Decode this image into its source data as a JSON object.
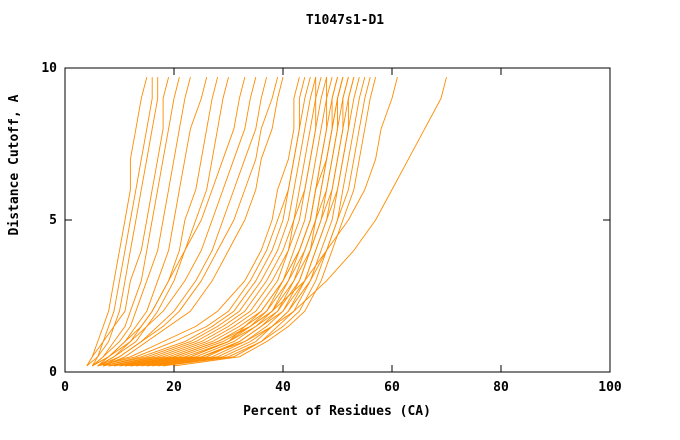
{
  "chart_data": {
    "type": "line",
    "title": "T1047s1-D1",
    "xlabel": "Percent of Residues (CA)",
    "ylabel": "Distance Cutoff, A",
    "xlim": [
      0,
      100
    ],
    "ylim": [
      0,
      10
    ],
    "x_ticks": [
      0,
      20,
      40,
      60,
      80,
      100
    ],
    "y_ticks": [
      0,
      5,
      10
    ],
    "grid": false,
    "legend": "none",
    "line_color": "#ff8c00",
    "axis_color": "#000000",
    "y_levels": [
      0.2,
      0.5,
      1,
      1.5,
      2,
      3,
      4,
      5,
      6,
      7,
      8,
      9,
      9.7
    ],
    "curves": [
      [
        4,
        5,
        6,
        7,
        8,
        9,
        10,
        11,
        12,
        12,
        13,
        14,
        15
      ],
      [
        4,
        5,
        7,
        8,
        9,
        10,
        11,
        12,
        13,
        14,
        15,
        16,
        16
      ],
      [
        5,
        6,
        7,
        9,
        10,
        11,
        12,
        13,
        14,
        15,
        16,
        17,
        17
      ],
      [
        4,
        6,
        8,
        9,
        11,
        12,
        14,
        15,
        16,
        17,
        18,
        18,
        19
      ],
      [
        5,
        7,
        9,
        11,
        12,
        14,
        15,
        16,
        17,
        18,
        19,
        20,
        21
      ],
      [
        5,
        7,
        10,
        12,
        13,
        15,
        17,
        18,
        19,
        20,
        21,
        22,
        23
      ],
      [
        6,
        8,
        11,
        13,
        15,
        17,
        19,
        20,
        21,
        22,
        23,
        25,
        26
      ],
      [
        5,
        8,
        12,
        14,
        16,
        19,
        21,
        22,
        24,
        25,
        26,
        27,
        28
      ],
      [
        6,
        9,
        13,
        15,
        17,
        20,
        22,
        24,
        26,
        27,
        28,
        29,
        30
      ],
      [
        5,
        8,
        11,
        14,
        16,
        19,
        22,
        25,
        27,
        29,
        31,
        32,
        33
      ],
      [
        6,
        9,
        12,
        15,
        18,
        22,
        25,
        27,
        29,
        31,
        33,
        34,
        35
      ],
      [
        6,
        10,
        14,
        17,
        20,
        24,
        27,
        29,
        31,
        33,
        35,
        36,
        37
      ],
      [
        7,
        10,
        14,
        18,
        21,
        25,
        28,
        31,
        33,
        35,
        36,
        38,
        39
      ],
      [
        7,
        11,
        15,
        19,
        23,
        27,
        30,
        33,
        35,
        36,
        38,
        39,
        40
      ],
      [
        6,
        12,
        18,
        24,
        28,
        33,
        36,
        38,
        39,
        41,
        42,
        42,
        43
      ],
      [
        6,
        13,
        20,
        26,
        30,
        34,
        37,
        39,
        41,
        42,
        43,
        43,
        44
      ],
      [
        7,
        14,
        22,
        27,
        31,
        35,
        38,
        40,
        41,
        42,
        43,
        44,
        45
      ],
      [
        7,
        15,
        23,
        28,
        32,
        36,
        39,
        41,
        42,
        43,
        44,
        45,
        46
      ],
      [
        8,
        16,
        24,
        29,
        33,
        37,
        40,
        42,
        43,
        44,
        45,
        46,
        46
      ],
      [
        8,
        17,
        25,
        30,
        34,
        38,
        41,
        42,
        44,
        45,
        46,
        46,
        47
      ],
      [
        9,
        18,
        26,
        31,
        35,
        39,
        41,
        43,
        44,
        45,
        46,
        47,
        48
      ],
      [
        9,
        19,
        27,
        32,
        36,
        40,
        42,
        44,
        45,
        46,
        47,
        48,
        48
      ],
      [
        10,
        20,
        28,
        33,
        37,
        40,
        43,
        45,
        46,
        47,
        48,
        48,
        49
      ],
      [
        10,
        21,
        29,
        34,
        37,
        41,
        43,
        45,
        46,
        47,
        48,
        49,
        50
      ],
      [
        11,
        22,
        30,
        34,
        38,
        41,
        44,
        46,
        47,
        48,
        49,
        49,
        50
      ],
      [
        11,
        23,
        30,
        35,
        38,
        42,
        44,
        46,
        47,
        48,
        49,
        50,
        51
      ],
      [
        12,
        24,
        31,
        35,
        39,
        42,
        45,
        46,
        48,
        49,
        50,
        50,
        51
      ],
      [
        12,
        25,
        32,
        36,
        39,
        43,
        45,
        47,
        48,
        49,
        50,
        51,
        52
      ],
      [
        13,
        26,
        32,
        36,
        40,
        43,
        45,
        47,
        49,
        50,
        51,
        51,
        52
      ],
      [
        14,
        27,
        33,
        37,
        40,
        44,
        46,
        48,
        49,
        50,
        51,
        52,
        53
      ],
      [
        15,
        28,
        34,
        38,
        41,
        44,
        46,
        48,
        50,
        51,
        52,
        52,
        53
      ],
      [
        16,
        29,
        35,
        38,
        41,
        45,
        47,
        49,
        50,
        51,
        52,
        53,
        54
      ],
      [
        17,
        30,
        36,
        39,
        42,
        45,
        48,
        50,
        51,
        52,
        53,
        54,
        55
      ],
      [
        18,
        31,
        36,
        40,
        43,
        46,
        48,
        50,
        52,
        53,
        54,
        55,
        56
      ],
      [
        20,
        32,
        37,
        41,
        44,
        47,
        49,
        51,
        53,
        54,
        55,
        56,
        57
      ],
      [
        12,
        20,
        28,
        34,
        38,
        44,
        48,
        52,
        55,
        57,
        58,
        60,
        61
      ],
      [
        15,
        25,
        33,
        38,
        42,
        48,
        53,
        57,
        60,
        63,
        66,
        69,
        70
      ],
      [
        8,
        23,
        30,
        33,
        36,
        40,
        43,
        45,
        46,
        48,
        49,
        50,
        51
      ]
    ]
  }
}
